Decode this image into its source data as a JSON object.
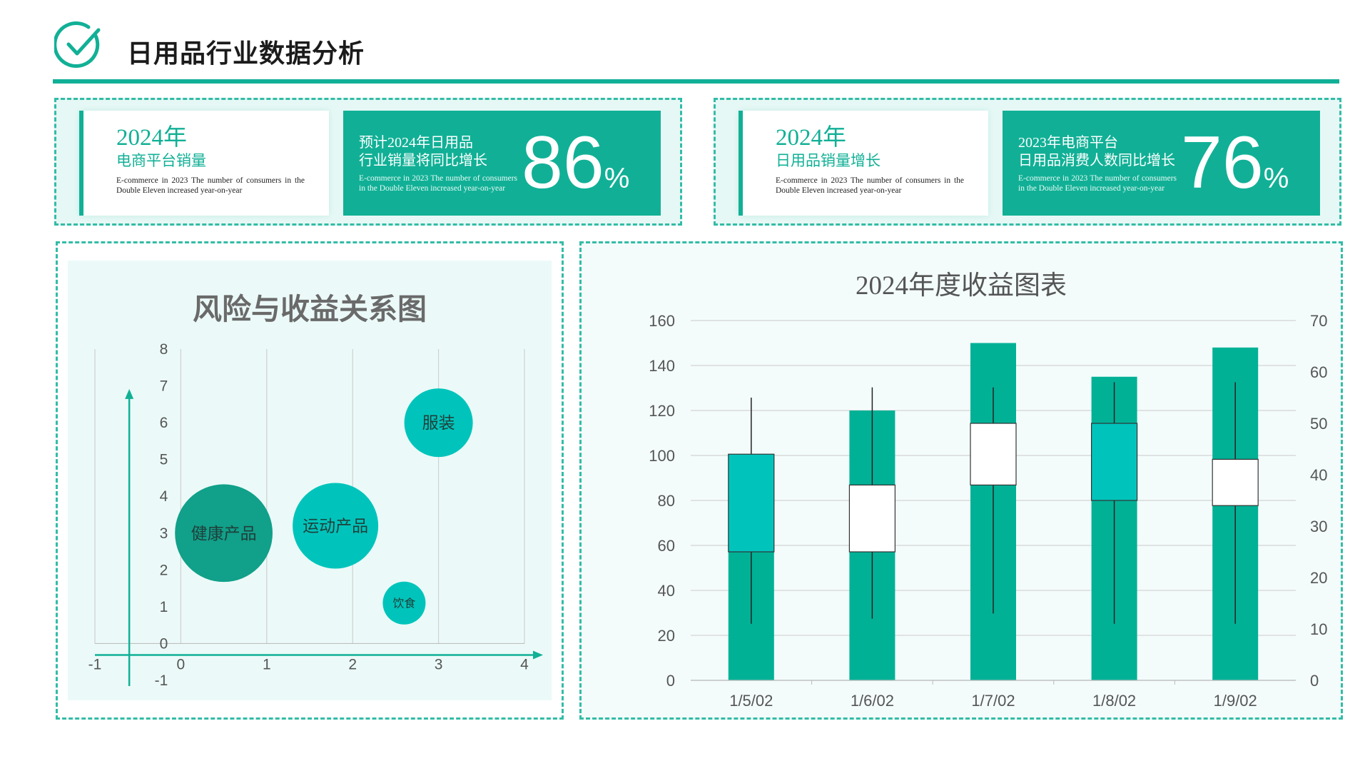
{
  "header": {
    "title": "日用品行业数据分析",
    "icon": "check-circle-icon",
    "accent_color": "#11b096"
  },
  "kpi_cards": [
    {
      "year": "2024年",
      "subtitle": "电商平台销量",
      "description": "E-commerce in 2023 The number of consumers in the Double Eleven increased year-on-year",
      "label_line1": "预计2024年日用品",
      "label_line2": "行业销量将同比增长",
      "label_description": "E-commerce in 2023 The number of consumers in the Double Eleven increased year-on-year",
      "value": "86",
      "unit": "%"
    },
    {
      "year": "2024年",
      "subtitle": "日用品销量增长",
      "description": "E-commerce in 2023 The number of consumers in the Double Eleven increased year-on-year",
      "label_line1": "2023年电商平台",
      "label_line2": "日用品消费人数同比增长",
      "label_description": "E-commerce in 2023 The number of consumers in the Double Eleven increased year-on-year",
      "value": "76",
      "unit": "%"
    }
  ],
  "chart_data": [
    {
      "type": "bubble",
      "title": "风险与收益关系图",
      "xlim": [
        -1,
        4
      ],
      "ylim": [
        -1,
        8
      ],
      "x_ticks": [
        "-1",
        "0",
        "1",
        "2",
        "3",
        "4"
      ],
      "y_ticks": [
        "-1",
        "0",
        "1",
        "2",
        "3",
        "4",
        "5",
        "6",
        "7",
        "8"
      ],
      "grid": "vertical",
      "points": [
        {
          "label": "健康产品",
          "x": 0.5,
          "y": 3.0,
          "size": 57,
          "color": "#11a08a"
        },
        {
          "label": "运动产品",
          "x": 1.8,
          "y": 3.2,
          "size": 50,
          "color": "#00c4bb"
        },
        {
          "label": "服装",
          "x": 3.0,
          "y": 6.0,
          "size": 40,
          "color": "#00c4bb"
        },
        {
          "label": "饮食",
          "x": 2.6,
          "y": 1.1,
          "size": 25,
          "color": "#00c4bb"
        }
      ]
    },
    {
      "type": "bar-candlestick",
      "title": "2024年度收益图表",
      "categories": [
        "1/5/02",
        "1/6/02",
        "1/7/02",
        "1/8/02",
        "1/9/02"
      ],
      "y_left_ticks": [
        "0",
        "20",
        "40",
        "60",
        "80",
        "100",
        "120",
        "140",
        "160"
      ],
      "y_right_ticks": [
        "0",
        "10",
        "20",
        "30",
        "40",
        "50",
        "60",
        "70"
      ],
      "ylim_left": [
        0,
        160
      ],
      "ylim_right": [
        0,
        70
      ],
      "grid": "horizontal",
      "bar_color": "#00b196",
      "bars": [
        100,
        120,
        150,
        135,
        148
      ],
      "candles": [
        {
          "open": 44,
          "high": 55,
          "low": 11,
          "close": 25,
          "color": "#00c4bb"
        },
        {
          "open": 25,
          "high": 57,
          "low": 12,
          "close": 38,
          "color": "#ffffff"
        },
        {
          "open": 38,
          "high": 57,
          "low": 13,
          "close": 50,
          "color": "#ffffff"
        },
        {
          "open": 50,
          "high": 58,
          "low": 11,
          "close": 35,
          "color": "#00c4bb"
        },
        {
          "open": 34,
          "high": 58,
          "low": 11,
          "close": 43,
          "color": "#ffffff"
        }
      ]
    }
  ]
}
